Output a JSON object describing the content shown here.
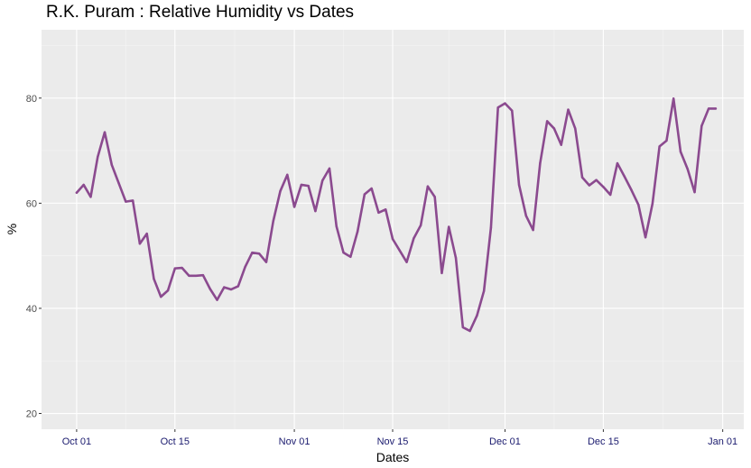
{
  "chart_data": {
    "type": "line",
    "title": "R.K. Puram : Relative Humidity vs Dates",
    "xlabel": "Dates",
    "ylabel": "%",
    "x_start": "2017-10-01",
    "ylim": [
      17,
      93
    ],
    "xlim": [
      "2017-09-26",
      "2018-01-04"
    ],
    "grid": true,
    "x_ticks": [
      {
        "date": "2017-10-01",
        "label": "Oct 01"
      },
      {
        "date": "2017-10-15",
        "label": "Oct 15"
      },
      {
        "date": "2017-11-01",
        "label": "Nov 01"
      },
      {
        "date": "2017-11-15",
        "label": "Nov 15"
      },
      {
        "date": "2017-12-01",
        "label": "Dec 01"
      },
      {
        "date": "2017-12-15",
        "label": "Dec 15"
      },
      {
        "date": "2018-01-01",
        "label": "Jan 01"
      }
    ],
    "y_ticks": [
      20,
      40,
      60,
      80
    ],
    "series": [
      {
        "name": "Relative Humidity",
        "color": "#8b4a8f",
        "points": [
          [
            "2017-10-01",
            62.0
          ],
          [
            "2017-10-02",
            63.5
          ],
          [
            "2017-10-03",
            61.2
          ],
          [
            "2017-10-04",
            68.8
          ],
          [
            "2017-10-05",
            73.5
          ],
          [
            "2017-10-06",
            67.3
          ],
          [
            "2017-10-07",
            63.8
          ],
          [
            "2017-10-08",
            60.3
          ],
          [
            "2017-10-09",
            60.5
          ],
          [
            "2017-10-10",
            52.3
          ],
          [
            "2017-10-11",
            54.2
          ],
          [
            "2017-10-12",
            45.6
          ],
          [
            "2017-10-13",
            42.2
          ],
          [
            "2017-10-14",
            43.4
          ],
          [
            "2017-10-15",
            47.6
          ],
          [
            "2017-10-16",
            47.7
          ],
          [
            "2017-10-17",
            46.2
          ],
          [
            "2017-10-18",
            46.2
          ],
          [
            "2017-10-19",
            46.3
          ],
          [
            "2017-10-20",
            43.7
          ],
          [
            "2017-10-21",
            41.6
          ],
          [
            "2017-10-22",
            44.0
          ],
          [
            "2017-10-23",
            43.6
          ],
          [
            "2017-10-24",
            44.2
          ],
          [
            "2017-10-25",
            47.9
          ],
          [
            "2017-10-26",
            50.6
          ],
          [
            "2017-10-27",
            50.4
          ],
          [
            "2017-10-28",
            48.8
          ],
          [
            "2017-10-29",
            56.6
          ],
          [
            "2017-10-30",
            62.3
          ],
          [
            "2017-10-31",
            65.4
          ],
          [
            "2017-11-01",
            59.3
          ],
          [
            "2017-11-02",
            63.5
          ],
          [
            "2017-11-03",
            63.3
          ],
          [
            "2017-11-04",
            58.5
          ],
          [
            "2017-11-05",
            64.3
          ],
          [
            "2017-11-06",
            66.6
          ],
          [
            "2017-11-07",
            55.6
          ],
          [
            "2017-11-08",
            50.6
          ],
          [
            "2017-11-09",
            49.8
          ],
          [
            "2017-11-10",
            54.6
          ],
          [
            "2017-11-11",
            61.7
          ],
          [
            "2017-11-12",
            62.8
          ],
          [
            "2017-11-13",
            58.2
          ],
          [
            "2017-11-14",
            58.8
          ],
          [
            "2017-11-15",
            53.2
          ],
          [
            "2017-11-16",
            51.0
          ],
          [
            "2017-11-17",
            48.8
          ],
          [
            "2017-11-18",
            53.3
          ],
          [
            "2017-11-19",
            55.8
          ],
          [
            "2017-11-20",
            63.2
          ],
          [
            "2017-11-21",
            61.2
          ],
          [
            "2017-11-22",
            46.7
          ],
          [
            "2017-11-23",
            55.5
          ],
          [
            "2017-11-24",
            49.6
          ],
          [
            "2017-11-25",
            36.4
          ],
          [
            "2017-11-26",
            35.7
          ],
          [
            "2017-11-27",
            38.6
          ],
          [
            "2017-11-28",
            43.3
          ],
          [
            "2017-11-29",
            55.4
          ],
          [
            "2017-11-30",
            78.2
          ],
          [
            "2017-12-01",
            79.0
          ],
          [
            "2017-12-02",
            77.6
          ],
          [
            "2017-12-03",
            63.5
          ],
          [
            "2017-12-04",
            57.6
          ],
          [
            "2017-12-05",
            54.9
          ],
          [
            "2017-12-06",
            67.6
          ],
          [
            "2017-12-07",
            75.6
          ],
          [
            "2017-12-08",
            74.2
          ],
          [
            "2017-12-09",
            71.1
          ],
          [
            "2017-12-10",
            77.8
          ],
          [
            "2017-12-11",
            74.2
          ],
          [
            "2017-12-12",
            64.9
          ],
          [
            "2017-12-13",
            63.4
          ],
          [
            "2017-12-14",
            64.4
          ],
          [
            "2017-12-15",
            63.1
          ],
          [
            "2017-12-16",
            61.6
          ],
          [
            "2017-12-17",
            67.6
          ],
          [
            "2017-12-18",
            65.1
          ],
          [
            "2017-12-19",
            62.5
          ],
          [
            "2017-12-20",
            59.7
          ],
          [
            "2017-12-21",
            53.5
          ],
          [
            "2017-12-22",
            59.9
          ],
          [
            "2017-12-23",
            70.8
          ],
          [
            "2017-12-24",
            71.9
          ],
          [
            "2017-12-25",
            79.9
          ],
          [
            "2017-12-26",
            69.8
          ],
          [
            "2017-12-27",
            66.5
          ],
          [
            "2017-12-28",
            62.1
          ],
          [
            "2017-12-29",
            74.7
          ],
          [
            "2017-12-30",
            78.0
          ],
          [
            "2017-12-31",
            78.0
          ]
        ]
      }
    ]
  }
}
